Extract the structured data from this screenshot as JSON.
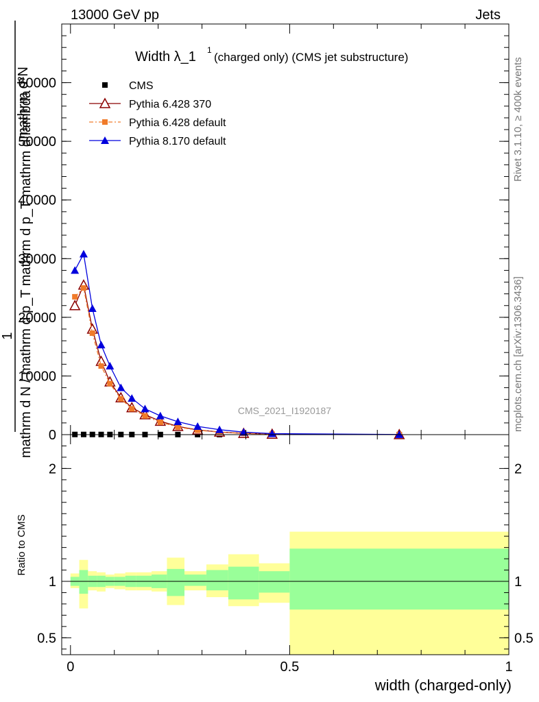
{
  "header": {
    "left": "13000 GeV pp",
    "right": "Jets"
  },
  "side_labels": {
    "rivet": "Rivet 3.1.10, ≥ 400k events",
    "mcplots": "mcplots.cern.ch [arXiv:1306.3436]"
  },
  "watermark": "CMS_2021_I1920187",
  "chart_data": [
    {
      "type": "line",
      "title_main": "Width λ_1",
      "title_sup": "1",
      "title_rest": "(charged only) (CMS jet substructure)",
      "ylabel_top": "1",
      "ylabel_num": "mathrm d²N",
      "ylabel_den": "mathrm d N / mathrm d p_T mathrm d p_T mathrm d lambda",
      "ylim": [
        0,
        70000
      ],
      "yticks": [
        {
          "v": 0,
          "label": "0"
        },
        {
          "v": 10000,
          "label": "10000"
        },
        {
          "v": 20000,
          "label": "20000"
        },
        {
          "v": 30000,
          "label": "30000"
        },
        {
          "v": 40000,
          "label": "40000"
        },
        {
          "v": 50000,
          "label": "50000"
        },
        {
          "v": 60000,
          "label": "60000"
        }
      ],
      "xlim": [
        -0.02,
        1.0
      ],
      "legend_position": "top-left",
      "series": [
        {
          "name": "CMS",
          "color": "#000000",
          "marker": "square",
          "x": [
            0.01,
            0.03,
            0.05,
            0.07,
            0.09,
            0.115,
            0.14,
            0.17,
            0.205,
            0.245,
            0.29,
            0.34,
            0.395,
            0.46,
            0.75
          ],
          "y": [
            30,
            30,
            30,
            28,
            26,
            24,
            22,
            20,
            18,
            16,
            14,
            12,
            10,
            6,
            4
          ]
        },
        {
          "name": "Pythia 6.428 370",
          "color": "#8b0000",
          "marker": "triangle-open",
          "x": [
            0.01,
            0.03,
            0.05,
            0.07,
            0.09,
            0.115,
            0.14,
            0.17,
            0.205,
            0.245,
            0.29,
            0.34,
            0.395,
            0.46,
            0.75
          ],
          "y": [
            22000,
            25500,
            18000,
            12500,
            9000,
            6300,
            4600,
            3400,
            2300,
            1400,
            800,
            450,
            220,
            90,
            15
          ]
        },
        {
          "name": "Pythia 6.428 default",
          "color": "#f07b2a",
          "marker": "square-small",
          "dashed": true,
          "x": [
            0.01,
            0.03,
            0.05,
            0.07,
            0.09,
            0.115,
            0.14,
            0.17,
            0.205,
            0.245,
            0.29,
            0.34,
            0.395,
            0.46,
            0.75
          ],
          "y": [
            23500,
            25000,
            17300,
            11700,
            8700,
            6100,
            4400,
            3200,
            2100,
            1300,
            750,
            420,
            200,
            80,
            12
          ]
        },
        {
          "name": "Pythia 8.170 default",
          "color": "#0000dd",
          "marker": "triangle-filled",
          "x": [
            0.01,
            0.03,
            0.05,
            0.07,
            0.09,
            0.115,
            0.14,
            0.17,
            0.205,
            0.245,
            0.29,
            0.34,
            0.395,
            0.46,
            0.75
          ],
          "y": [
            28000,
            30800,
            21500,
            15300,
            11700,
            8000,
            6200,
            4400,
            3200,
            2200,
            1400,
            850,
            430,
            170,
            20
          ]
        }
      ]
    },
    {
      "type": "area",
      "ylabel": "Ratio to CMS",
      "xlabel": "width (charged-only)",
      "ylim": [
        0.35,
        2.3
      ],
      "xlim": [
        -0.02,
        1.0
      ],
      "yticks": [
        {
          "v": 0.5,
          "label": "0.5"
        },
        {
          "v": 1,
          "label": "1"
        },
        {
          "v": 2,
          "label": "2"
        }
      ],
      "xticks": [
        {
          "v": 0,
          "label": "0"
        },
        {
          "v": 0.5,
          "label": "0.5"
        },
        {
          "v": 1,
          "label": "1"
        }
      ],
      "reference_line": 1,
      "band_colors": {
        "outer": "#ffff99",
        "inner": "#99ff99"
      },
      "bins": [
        {
          "lo": 0.0,
          "hi": 0.02,
          "outer": [
            0.94,
            1.07
          ],
          "inner": [
            0.96,
            1.04
          ]
        },
        {
          "lo": 0.02,
          "hi": 0.04,
          "outer": [
            0.76,
            1.19
          ],
          "inner": [
            0.89,
            1.1
          ]
        },
        {
          "lo": 0.04,
          "hi": 0.06,
          "outer": [
            0.92,
            1.09
          ],
          "inner": [
            0.95,
            1.05
          ]
        },
        {
          "lo": 0.06,
          "hi": 0.08,
          "outer": [
            0.91,
            1.08
          ],
          "inner": [
            0.95,
            1.05
          ]
        },
        {
          "lo": 0.08,
          "hi": 0.1,
          "outer": [
            0.94,
            1.06
          ],
          "inner": [
            0.96,
            1.04
          ]
        },
        {
          "lo": 0.1,
          "hi": 0.125,
          "outer": [
            0.93,
            1.07
          ],
          "inner": [
            0.96,
            1.04
          ]
        },
        {
          "lo": 0.125,
          "hi": 0.15,
          "outer": [
            0.92,
            1.08
          ],
          "inner": [
            0.95,
            1.05
          ]
        },
        {
          "lo": 0.15,
          "hi": 0.185,
          "outer": [
            0.92,
            1.08
          ],
          "inner": [
            0.95,
            1.05
          ]
        },
        {
          "lo": 0.185,
          "hi": 0.22,
          "outer": [
            0.91,
            1.09
          ],
          "inner": [
            0.94,
            1.06
          ]
        },
        {
          "lo": 0.22,
          "hi": 0.26,
          "outer": [
            0.79,
            1.21
          ],
          "inner": [
            0.87,
            1.11
          ]
        },
        {
          "lo": 0.26,
          "hi": 0.31,
          "outer": [
            0.92,
            1.09
          ],
          "inner": [
            0.96,
            1.06
          ]
        },
        {
          "lo": 0.31,
          "hi": 0.36,
          "outer": [
            0.86,
            1.15
          ],
          "inner": [
            0.92,
            1.1
          ]
        },
        {
          "lo": 0.36,
          "hi": 0.43,
          "outer": [
            0.78,
            1.24
          ],
          "inner": [
            0.84,
            1.13
          ]
        },
        {
          "lo": 0.43,
          "hi": 0.5,
          "outer": [
            0.81,
            1.16
          ],
          "inner": [
            0.9,
            1.09
          ]
        },
        {
          "lo": 0.5,
          "hi": 1.0,
          "outer": [
            0.35,
            1.44
          ],
          "inner": [
            0.75,
            1.29
          ]
        }
      ]
    }
  ]
}
